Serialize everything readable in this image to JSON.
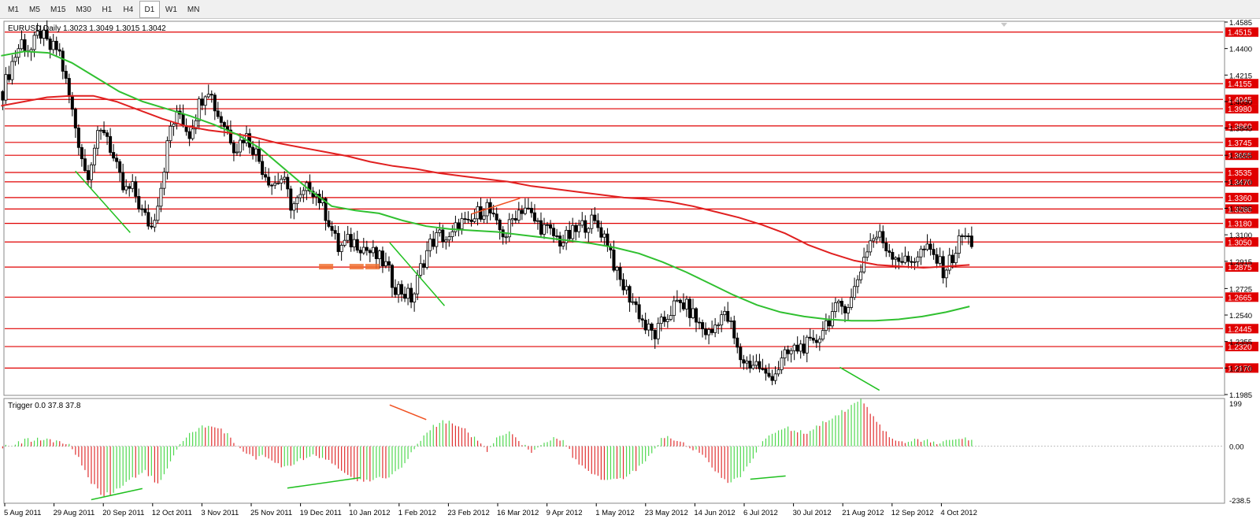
{
  "toolbar": {
    "timeframes": [
      "M1",
      "M5",
      "M15",
      "M30",
      "H1",
      "H4",
      "D1",
      "W1",
      "MN"
    ],
    "active": "D1"
  },
  "main_chart": {
    "header": "EURUSD,Daily  1.3023 1.3049 1.3015 1.3042",
    "price_ticks": [
      "1.4585",
      "1.4400",
      "1.4215",
      "1.4030",
      "1.3845",
      "1.3655",
      "1.3470",
      "1.3285",
      "1.3100",
      "1.2915",
      "1.2725",
      "1.2540",
      "1.2355",
      "1.2170",
      "1.1985"
    ],
    "level_labels": [
      "1.4515",
      "1.4155",
      "1.4045",
      "1.3980",
      "1.3860",
      "1.3745",
      "1.3655",
      "1.3535",
      "1.3470",
      "1.3360",
      "1.3280",
      "1.3180",
      "1.3050",
      "1.2875",
      "1.2665",
      "1.2445",
      "1.2320",
      "1.2170"
    ],
    "levels": [
      1.4515,
      1.4155,
      1.4045,
      1.398,
      1.386,
      1.3745,
      1.3655,
      1.3535,
      1.347,
      1.336,
      1.328,
      1.318,
      1.305,
      1.2875,
      1.2665,
      1.2445,
      1.232,
      1.217
    ],
    "y_range": [
      1.1985,
      1.4585
    ],
    "close_path": [
      1.41,
      1.43,
      1.445,
      1.438,
      1.452,
      1.44,
      1.44,
      1.41,
      1.38,
      1.35,
      1.375,
      1.385,
      1.36,
      1.34,
      1.342,
      1.325,
      1.315,
      1.345,
      1.385,
      1.395,
      1.38,
      1.4,
      1.415,
      1.395,
      1.385,
      1.37,
      1.38,
      1.37,
      1.355,
      1.345,
      1.35,
      1.33,
      1.335,
      1.345,
      1.335,
      1.32,
      1.3,
      1.305,
      1.305,
      1.3,
      1.295,
      1.29,
      1.275,
      1.27,
      1.265,
      1.29,
      1.305,
      1.31,
      1.305,
      1.32,
      1.315,
      1.325,
      1.33,
      1.315,
      1.31,
      1.325,
      1.33,
      1.32,
      1.315,
      1.31,
      1.305,
      1.31,
      1.315,
      1.32,
      1.315,
      1.305,
      1.28,
      1.27,
      1.26,
      1.245,
      1.24,
      1.25,
      1.26,
      1.262,
      1.255,
      1.245,
      1.24,
      1.255,
      1.25,
      1.225,
      1.22,
      1.22,
      1.21,
      1.215,
      1.225,
      1.23,
      1.233,
      1.232,
      1.245,
      1.255,
      1.26,
      1.263,
      1.285,
      1.305,
      1.31,
      1.3,
      1.295,
      1.29,
      1.295,
      1.3,
      1.295,
      1.285,
      1.295,
      1.31,
      1.305
    ],
    "ma_red": [
      1.4,
      1.403,
      1.406,
      1.407,
      1.407,
      1.403,
      1.397,
      1.391,
      1.386,
      1.383,
      1.381,
      1.378,
      1.374,
      1.371,
      1.368,
      1.365,
      1.361,
      1.358,
      1.356,
      1.353,
      1.351,
      1.349,
      1.347,
      1.344,
      1.342,
      1.34,
      1.338,
      1.336,
      1.335,
      1.333,
      1.33,
      1.326,
      1.322,
      1.317,
      1.311,
      1.303,
      1.297,
      1.292,
      1.289,
      1.288,
      1.287,
      1.288,
      1.289
    ],
    "ma_green": [
      1.435,
      1.438,
      1.437,
      1.43,
      1.42,
      1.41,
      1.403,
      1.398,
      1.393,
      1.387,
      1.38,
      1.37,
      1.356,
      1.342,
      1.33,
      1.327,
      1.325,
      1.32,
      1.316,
      1.314,
      1.313,
      1.312,
      1.31,
      1.308,
      1.306,
      1.304,
      1.301,
      1.297,
      1.291,
      1.284,
      1.276,
      1.268,
      1.261,
      1.256,
      1.253,
      1.251,
      1.25,
      1.25,
      1.251,
      1.253,
      1.256,
      1.26
    ],
    "trendlines": [
      {
        "color": "#20c020",
        "from": [
          -0.02,
          1.3545
        ],
        "to": [
          0.025,
          1.3115
        ]
      },
      {
        "color": "#20c020",
        "from": [
          0.238,
          1.3045
        ],
        "to": [
          0.283,
          1.2605
        ]
      },
      {
        "color": "#f05020",
        "from": [
          0.305,
          1.3245
        ],
        "to": [
          0.345,
          1.3355
        ]
      },
      {
        "color": "#20c020",
        "from": [
          0.6075,
          1.2175
        ],
        "to": [
          0.64,
          1.2015
        ]
      }
    ]
  },
  "indicator": {
    "header": "Trigger 0.0 37.8 37.8",
    "ticks": [
      "199",
      "0.00",
      "-238.5"
    ],
    "range": [
      -238.5,
      199
    ],
    "profile": [
      0,
      10,
      25,
      30,
      28,
      20,
      5,
      -60,
      -150,
      -210,
      -200,
      -170,
      -130,
      -110,
      -160,
      -100,
      10,
      60,
      80,
      90,
      70,
      20,
      -30,
      -50,
      -40,
      -80,
      -90,
      -60,
      -40,
      -50,
      -70,
      -110,
      -140,
      -150,
      -140,
      -130,
      -100,
      -40,
      30,
      80,
      110,
      95,
      70,
      30,
      -20,
      40,
      70,
      20,
      -30,
      10,
      35,
      20,
      -60,
      -100,
      -130,
      -150,
      -140,
      -120,
      -80,
      -20,
      40,
      30,
      10,
      -20,
      -60,
      -120,
      -160,
      -130,
      -60,
      20,
      50,
      80,
      70,
      60,
      90,
      110,
      140,
      175,
      200,
      130,
      70,
      20,
      10,
      30,
      25,
      15,
      20,
      35,
      30
    ]
  },
  "time_axis": {
    "labels": [
      "5 Aug 2011",
      "29 Aug 2011",
      "20 Sep 2011",
      "12 Oct 2011",
      "3 Nov 2011",
      "25 Nov 2011",
      "19 Dec 2011",
      "10 Jan 2012",
      "1 Feb 2012",
      "23 Feb 2012",
      "16 Mar 2012",
      "9 Apr 2012",
      "1 May 2012",
      "23 May 2012",
      "14 Jun 2012",
      "6 Jul 2012",
      "30 Jul 2012",
      "21 Aug 2012",
      "12 Sep 2012",
      "4 Oct 2012"
    ]
  },
  "colors": {
    "background": "#ffffff",
    "level_line": "#e00000",
    "level_label_bg": "#e00000",
    "ma_red": "#e02020",
    "ma_green": "#30c030",
    "candle": "#000000",
    "hist_up": "#50d850",
    "hist_down": "#e03030"
  }
}
